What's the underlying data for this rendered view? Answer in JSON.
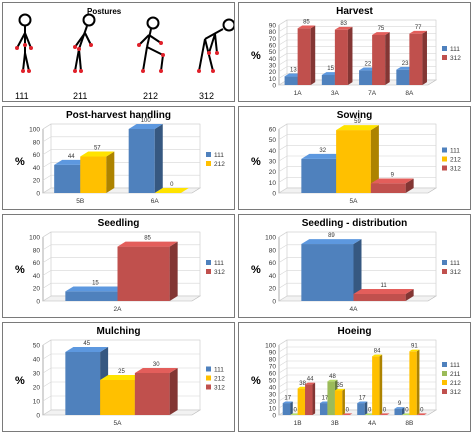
{
  "postures": {
    "title": "Postures",
    "codes": [
      "111",
      "211",
      "212",
      "312"
    ]
  },
  "colors": {
    "111": "#4f81bd",
    "211": "#9bbb59",
    "212": "#ffc000",
    "312": "#c0504d"
  },
  "chart_data": [
    {
      "id": "harvest",
      "type": "bar",
      "title": "Harvest",
      "ylabel": "%",
      "ylim": [
        0,
        90
      ],
      "yticks": [
        0,
        10,
        20,
        30,
        40,
        50,
        60,
        70,
        80,
        90
      ],
      "categories": [
        "1A",
        "3A",
        "7A",
        "8A"
      ],
      "series": [
        {
          "name": "111",
          "values": [
            13,
            15,
            22,
            23
          ]
        },
        {
          "name": "312",
          "values": [
            85,
            83,
            75,
            77
          ]
        }
      ],
      "legend": "right"
    },
    {
      "id": "post-harvest",
      "type": "bar",
      "title": "Post-harvest handling",
      "ylabel": "%",
      "ylim": [
        0,
        100
      ],
      "yticks": [
        0,
        20,
        40,
        60,
        80,
        100
      ],
      "categories": [
        "5B",
        "6A"
      ],
      "series": [
        {
          "name": "111",
          "values": [
            44,
            100
          ]
        },
        {
          "name": "212",
          "values": [
            57,
            0
          ]
        }
      ],
      "legend": "right"
    },
    {
      "id": "sowing",
      "type": "bar",
      "title": "Sowing",
      "ylabel": "%",
      "ylim": [
        0,
        60
      ],
      "yticks": [
        0,
        10,
        20,
        30,
        40,
        50,
        60
      ],
      "categories": [
        "5A"
      ],
      "series": [
        {
          "name": "111",
          "values": [
            32
          ]
        },
        {
          "name": "212",
          "values": [
            59
          ]
        },
        {
          "name": "312",
          "values": [
            9
          ]
        }
      ],
      "legend": "right"
    },
    {
      "id": "seedling",
      "type": "bar",
      "title": "Seedling",
      "ylabel": "%",
      "ylim": [
        0,
        100
      ],
      "yticks": [
        0,
        20,
        40,
        60,
        80,
        100
      ],
      "categories": [
        "2A"
      ],
      "series": [
        {
          "name": "111",
          "values": [
            15
          ]
        },
        {
          "name": "312",
          "values": [
            85
          ]
        }
      ],
      "legend": "right"
    },
    {
      "id": "seedling-distribution",
      "type": "bar",
      "title": "Seedling - distribution",
      "ylabel": "%",
      "ylim": [
        0,
        100
      ],
      "yticks": [
        0,
        20,
        40,
        60,
        80,
        100
      ],
      "categories": [
        "4A"
      ],
      "series": [
        {
          "name": "111",
          "values": [
            89
          ]
        },
        {
          "name": "312",
          "values": [
            11
          ]
        }
      ],
      "legend": "right"
    },
    {
      "id": "mulching",
      "type": "bar",
      "title": "Mulching",
      "ylabel": "%",
      "ylim": [
        0,
        50
      ],
      "yticks": [
        0,
        10,
        20,
        30,
        40,
        50
      ],
      "categories": [
        "5A"
      ],
      "series": [
        {
          "name": "111",
          "values": [
            45
          ]
        },
        {
          "name": "212",
          "values": [
            25
          ]
        },
        {
          "name": "312",
          "values": [
            30
          ]
        }
      ],
      "legend": "right"
    },
    {
      "id": "hoeing",
      "type": "bar",
      "title": "Hoeing",
      "ylabel": "%",
      "ylim": [
        0,
        100
      ],
      "yticks": [
        0,
        10,
        20,
        30,
        40,
        50,
        60,
        70,
        80,
        90,
        100
      ],
      "categories": [
        "1B",
        "3B",
        "4A",
        "8B"
      ],
      "series": [
        {
          "name": "111",
          "values": [
            17,
            17,
            17,
            9
          ]
        },
        {
          "name": "211",
          "values": [
            0,
            48,
            0,
            0
          ]
        },
        {
          "name": "212",
          "values": [
            38,
            35,
            84,
            91
          ]
        },
        {
          "name": "312",
          "values": [
            44,
            0,
            0,
            0
          ]
        }
      ],
      "legend": "right"
    }
  ]
}
